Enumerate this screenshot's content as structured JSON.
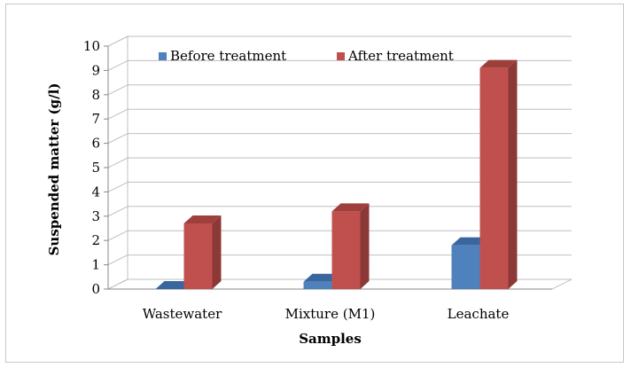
{
  "chart_data": {
    "type": "bar",
    "categories": [
      "Wastewater",
      "Mixture (M1)",
      "Leachate"
    ],
    "series": [
      {
        "name": "Before treatment",
        "values": [
          0.0,
          0.3,
          1.8
        ],
        "color": "#4f81bd",
        "side_color": "#385d8a",
        "top_color": "#3a66a0"
      },
      {
        "name": "After treatment",
        "values": [
          2.7,
          3.2,
          9.1
        ],
        "color": "#c0504d",
        "side_color": "#8c3836",
        "top_color": "#9e3f3c"
      }
    ],
    "xlabel": "Samples",
    "ylabel": "Suspended matter (g/l)",
    "ylim": [
      0,
      10
    ],
    "yticks": [
      "0",
      "1",
      "2",
      "3",
      "4",
      "5",
      "6",
      "7",
      "8",
      "9",
      "10"
    ],
    "grid": true,
    "legend_position": "top-left",
    "bar_style": "3d"
  }
}
